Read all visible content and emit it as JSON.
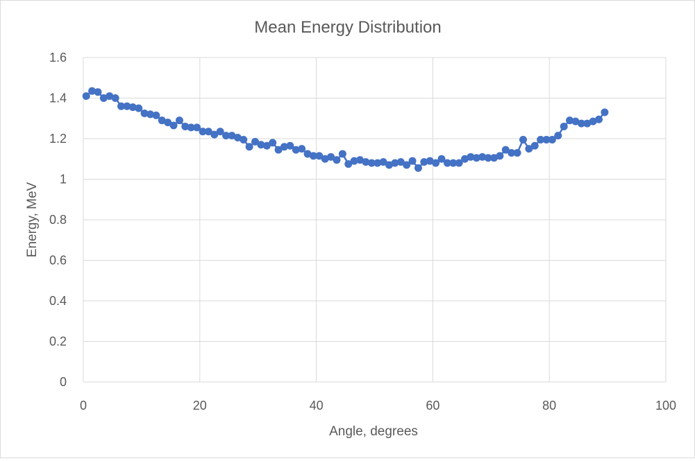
{
  "chart_data": {
    "type": "line",
    "title": "Mean Energy Distribution",
    "xlabel": "Angle, degrees",
    "ylabel": "Energy, MeV",
    "xlim": [
      0,
      100
    ],
    "ylim": [
      0,
      1.6
    ],
    "xticks": [
      "0",
      "20",
      "40",
      "60",
      "80",
      "100"
    ],
    "yticks": [
      "0",
      "0.2",
      "0.4",
      "0.6",
      "0.8",
      "1",
      "1.2",
      "1.4",
      "1.6"
    ],
    "grid": "major",
    "legend": "none",
    "series_color": "#4472c4",
    "gridline_color": "#d9d9d9",
    "series": [
      {
        "x": [
          0.5,
          1.5,
          2.5,
          3.5,
          4.5,
          5.5,
          6.5,
          7.5,
          8.5,
          9.5,
          10.5,
          11.5,
          12.5,
          13.5,
          14.5,
          15.5,
          16.5,
          17.5,
          18.5,
          19.5,
          20.5,
          21.5,
          22.5,
          23.5,
          24.5,
          25.5,
          26.5,
          27.5,
          28.5,
          29.5,
          30.5,
          31.5,
          32.5,
          33.5,
          34.5,
          35.5,
          36.5,
          37.5,
          38.5,
          39.5,
          40.5,
          41.5,
          42.5,
          43.5,
          44.5,
          45.5,
          46.5,
          47.5,
          48.5,
          49.5,
          50.5,
          51.5,
          52.5,
          53.5,
          54.5,
          55.5,
          56.5,
          57.5,
          58.5,
          59.5,
          60.5,
          61.5,
          62.5,
          63.5,
          64.5,
          65.5,
          66.5,
          67.5,
          68.5,
          69.5,
          70.5,
          71.5,
          72.5,
          73.5,
          74.5,
          75.5,
          76.5,
          77.5,
          78.5,
          79.5,
          80.5,
          81.5,
          82.5,
          83.5,
          84.5,
          85.5,
          86.5,
          87.5,
          88.5,
          89.5
        ],
        "y": [
          1.41,
          1.435,
          1.43,
          1.4,
          1.41,
          1.4,
          1.36,
          1.36,
          1.355,
          1.35,
          1.325,
          1.32,
          1.315,
          1.29,
          1.28,
          1.265,
          1.29,
          1.26,
          1.255,
          1.255,
          1.235,
          1.235,
          1.22,
          1.235,
          1.215,
          1.215,
          1.205,
          1.195,
          1.16,
          1.185,
          1.17,
          1.165,
          1.18,
          1.145,
          1.16,
          1.165,
          1.145,
          1.15,
          1.125,
          1.115,
          1.115,
          1.1,
          1.11,
          1.095,
          1.125,
          1.075,
          1.09,
          1.095,
          1.085,
          1.08,
          1.08,
          1.085,
          1.07,
          1.08,
          1.085,
          1.07,
          1.09,
          1.055,
          1.085,
          1.09,
          1.08,
          1.1,
          1.08,
          1.08,
          1.08,
          1.1,
          1.11,
          1.105,
          1.11,
          1.105,
          1.105,
          1.115,
          1.145,
          1.13,
          1.13,
          1.195,
          1.15,
          1.165,
          1.195,
          1.195,
          1.195,
          1.215,
          1.26,
          1.29,
          1.285,
          1.275,
          1.275,
          1.285,
          1.295,
          1.33
        ]
      }
    ]
  }
}
